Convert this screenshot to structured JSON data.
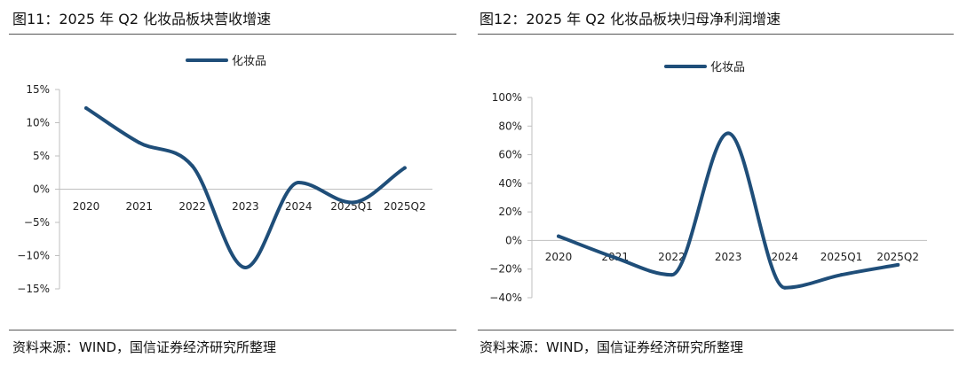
{
  "charts": [
    {
      "title": "图11：2025 年 Q2 化妆品板块营收增速",
      "source": "资料来源：WIND，国信证券经济研究所整理"
    },
    {
      "title": "图12：2025 年 Q2 化妆品板块归母净利润增速",
      "source": "资料来源：WIND，国信证券经济研究所整理"
    }
  ],
  "colors": {
    "line": "#1f4e79",
    "axis": "#bfbfbf"
  },
  "chart_data": [
    {
      "type": "line",
      "title": "图11：2025 年 Q2 化妆品板块营收增速",
      "categories": [
        "2020",
        "2021",
        "2022",
        "2023",
        "2024",
        "2025Q1",
        "2025Q2"
      ],
      "series": [
        {
          "name": "化妆品",
          "values": [
            12.2,
            7.0,
            3.5,
            -11.8,
            1.0,
            -2.0,
            3.2
          ]
        }
      ],
      "yticks": [
        "15%",
        "10%",
        "5%",
        "0%",
        "−5%",
        "−10%",
        "−15%"
      ],
      "ylim": [
        -15,
        15
      ],
      "legend": "top",
      "grid": false,
      "smooth": true
    },
    {
      "type": "line",
      "title": "图12：2025 年 Q2 化妆品板块归母净利润增速",
      "categories": [
        "2020",
        "2021",
        "2022",
        "2023",
        "2024",
        "2025Q1",
        "2025Q2"
      ],
      "series": [
        {
          "name": "化妆品",
          "values": [
            3,
            -12,
            -24,
            75,
            -33,
            -24,
            -17
          ]
        }
      ],
      "yticks": [
        "100%",
        "80%",
        "60%",
        "40%",
        "20%",
        "0%",
        "−20%",
        "−40%"
      ],
      "ylim": [
        -40,
        100
      ],
      "legend": "top",
      "grid": false,
      "smooth": true
    }
  ]
}
